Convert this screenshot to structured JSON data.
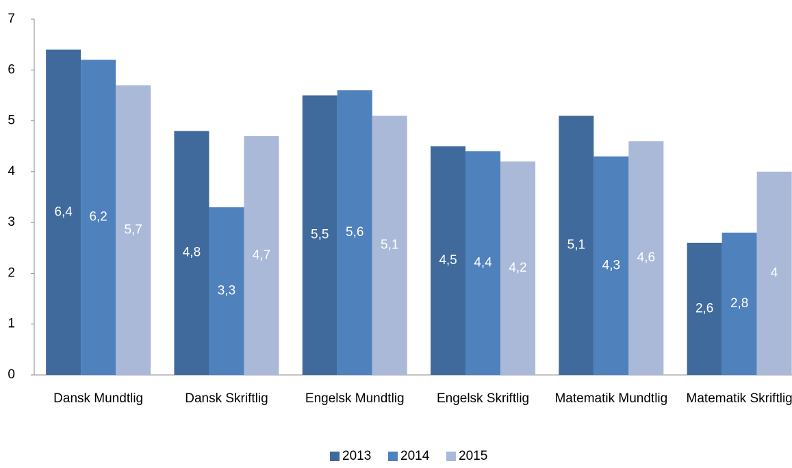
{
  "chart_data": {
    "type": "bar",
    "categories": [
      "Dansk Mundtlig",
      "Dansk Skriftlig",
      "Engelsk Mundtlig",
      "Engelsk Skriftlig",
      "Matematik Mundtlig",
      "Matematik Skriftlig"
    ],
    "series": [
      {
        "name": "2013",
        "color": "#3f6a9b",
        "values": [
          6.4,
          4.8,
          5.5,
          4.5,
          5.1,
          2.6
        ],
        "value_labels": [
          "6,4",
          "4,8",
          "5,5",
          "4,5",
          "5,1",
          "2,6"
        ]
      },
      {
        "name": "2014",
        "color": "#4f81bd",
        "values": [
          6.2,
          3.3,
          5.6,
          4.4,
          4.3,
          2.8
        ],
        "value_labels": [
          "6,2",
          "3,3",
          "5,6",
          "4,4",
          "4,3",
          "2,8"
        ]
      },
      {
        "name": "2015",
        "color": "#aab9d8",
        "values": [
          5.7,
          4.7,
          5.1,
          4.2,
          4.6,
          4
        ],
        "value_labels": [
          "5,7",
          "4,7",
          "5,1",
          "4,2",
          "4,6",
          "4"
        ]
      }
    ],
    "ylim": [
      0,
      7
    ],
    "yticks": [
      0,
      1,
      2,
      3,
      4,
      5,
      6,
      7
    ],
    "grid": false,
    "legend": "bottom"
  }
}
